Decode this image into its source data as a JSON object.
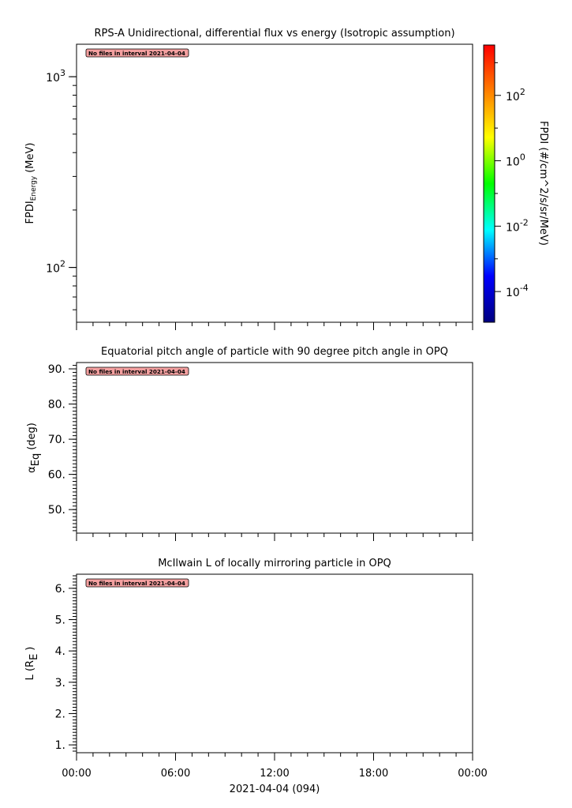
{
  "chart_data": [
    {
      "type": "heatmap",
      "title": "RPS-A Unidirectional, differential flux vs energy (Isotropic assumption)",
      "ylabel_main": "FPDI",
      "ylabel_sub": "Energy",
      "ylabel_unit": "(MeV)",
      "yscale": "log",
      "ylim": [
        51.6,
        1480
      ],
      "yticks": [
        {
          "value": 100,
          "base": "10",
          "exp": "2"
        },
        {
          "value": 1000,
          "base": "10",
          "exp": "3"
        }
      ],
      "annotation": "No files in interval 2021-04-04",
      "series": [],
      "colorbar": {
        "label": "FPDI (#/cm^2/s/sr/MeV)",
        "scale": "log",
        "range": [
          1.15e-05,
          3470
        ],
        "colormap": "rainbow",
        "colors": [
          "#00007f",
          "#0000ff",
          "#00ffff",
          "#00ff00",
          "#ffff00",
          "#ff7f00",
          "#ff0000"
        ],
        "ticks": [
          {
            "value": 0.0001,
            "base": "10",
            "exp": "-4"
          },
          {
            "value": 0.01,
            "base": "10",
            "exp": "-2"
          },
          {
            "value": 1,
            "base": "10",
            "exp": "0"
          },
          {
            "value": 100,
            "base": "10",
            "exp": "2"
          }
        ]
      }
    },
    {
      "type": "line",
      "title": "Equatorial pitch angle of particle with 90 degree pitch angle in OPQ",
      "ylabel_main": "α",
      "ylabel_sub": "Eq",
      "ylabel_unit": "(deg)",
      "yscale": "linear",
      "ylim": [
        43.3,
        91.8
      ],
      "yticks": [
        {
          "value": 50,
          "label": "50."
        },
        {
          "value": 60,
          "label": "60."
        },
        {
          "value": 70,
          "label": "70."
        },
        {
          "value": 80,
          "label": "80."
        },
        {
          "value": 90,
          "label": "90."
        }
      ],
      "yminor": 1,
      "annotation": "No files in interval 2021-04-04",
      "series": []
    },
    {
      "type": "line",
      "title": "McIlwain L of locally mirroring particle in OPQ",
      "ylabel_main": "L (R",
      "ylabel_sub": "E",
      "ylabel_unit": ")",
      "yscale": "linear",
      "ylim": [
        0.75,
        6.45
      ],
      "yticks": [
        {
          "value": 1,
          "label": "1."
        },
        {
          "value": 2,
          "label": "2."
        },
        {
          "value": 3,
          "label": "3."
        },
        {
          "value": 4,
          "label": "4."
        },
        {
          "value": 5,
          "label": "5."
        },
        {
          "value": 6,
          "label": "6."
        }
      ],
      "yminor": 0.1,
      "annotation": "No files in interval 2021-04-04",
      "series": []
    }
  ],
  "xaxis": {
    "range_hours": [
      0,
      24
    ],
    "ticks": [
      "00:00",
      "06:00",
      "12:00",
      "18:00",
      "00:00"
    ],
    "label": "2021-04-04 (094)"
  },
  "colors": {
    "annotation_bg": "#f4a0a0"
  }
}
